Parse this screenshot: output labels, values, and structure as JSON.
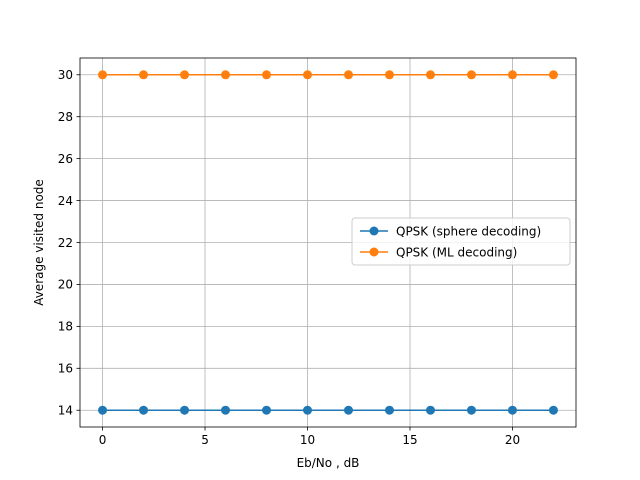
{
  "chart_data": {
    "type": "line",
    "title": "",
    "xlabel": "Eb/No , dB",
    "ylabel": "Average visited node",
    "xlim": [
      -1.1,
      23.1
    ],
    "ylim": [
      13.2,
      30.8
    ],
    "xticks": [
      0,
      5,
      10,
      15,
      20
    ],
    "yticks": [
      14,
      16,
      18,
      20,
      22,
      24,
      26,
      28,
      30
    ],
    "grid": true,
    "legend_position": "center-right",
    "x": [
      0,
      2,
      4,
      6,
      8,
      10,
      12,
      14,
      16,
      18,
      20,
      22
    ],
    "series": [
      {
        "name": "QPSK (sphere decoding)",
        "color": "#1f77b4",
        "marker": "circle",
        "values": [
          14,
          14,
          14,
          14,
          14,
          14,
          14,
          14,
          14,
          14,
          14,
          14
        ]
      },
      {
        "name": "QPSK (ML decoding)",
        "color": "#ff7f0e",
        "marker": "circle",
        "values": [
          30,
          30,
          30,
          30,
          30,
          30,
          30,
          30,
          30,
          30,
          30,
          30
        ]
      }
    ]
  }
}
